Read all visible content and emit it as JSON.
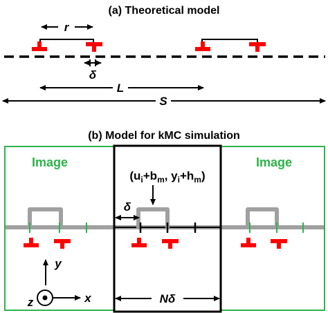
{
  "panel_a": {
    "title": "(a) Theoretical model",
    "label_r": "r",
    "label_delta": "δ",
    "label_L": "L",
    "label_S": "S"
  },
  "panel_b": {
    "title": "(b) Model for kMC simulation",
    "image_left": "Image",
    "image_right": "Image",
    "coord_u": "(u",
    "sub_i1": "i",
    "coord_plus_b": "+b",
    "sub_m1": "m",
    "coord_y": ", y",
    "sub_i2": "i",
    "coord_plus_h": "+h",
    "sub_m2": "m",
    "coord_close": ")",
    "label_delta": "δ",
    "label_N": "N",
    "label_Ndelta_d": "δ",
    "axis_y": "y",
    "axis_x": "x",
    "axis_z": "z"
  },
  "colors": {
    "dislocation": "#ff0000",
    "image_box": "#2db34a",
    "image_text": "#2db34a",
    "glide_line": "#a0a0a0",
    "dislocation_line_sim": "#a0a0a0"
  }
}
